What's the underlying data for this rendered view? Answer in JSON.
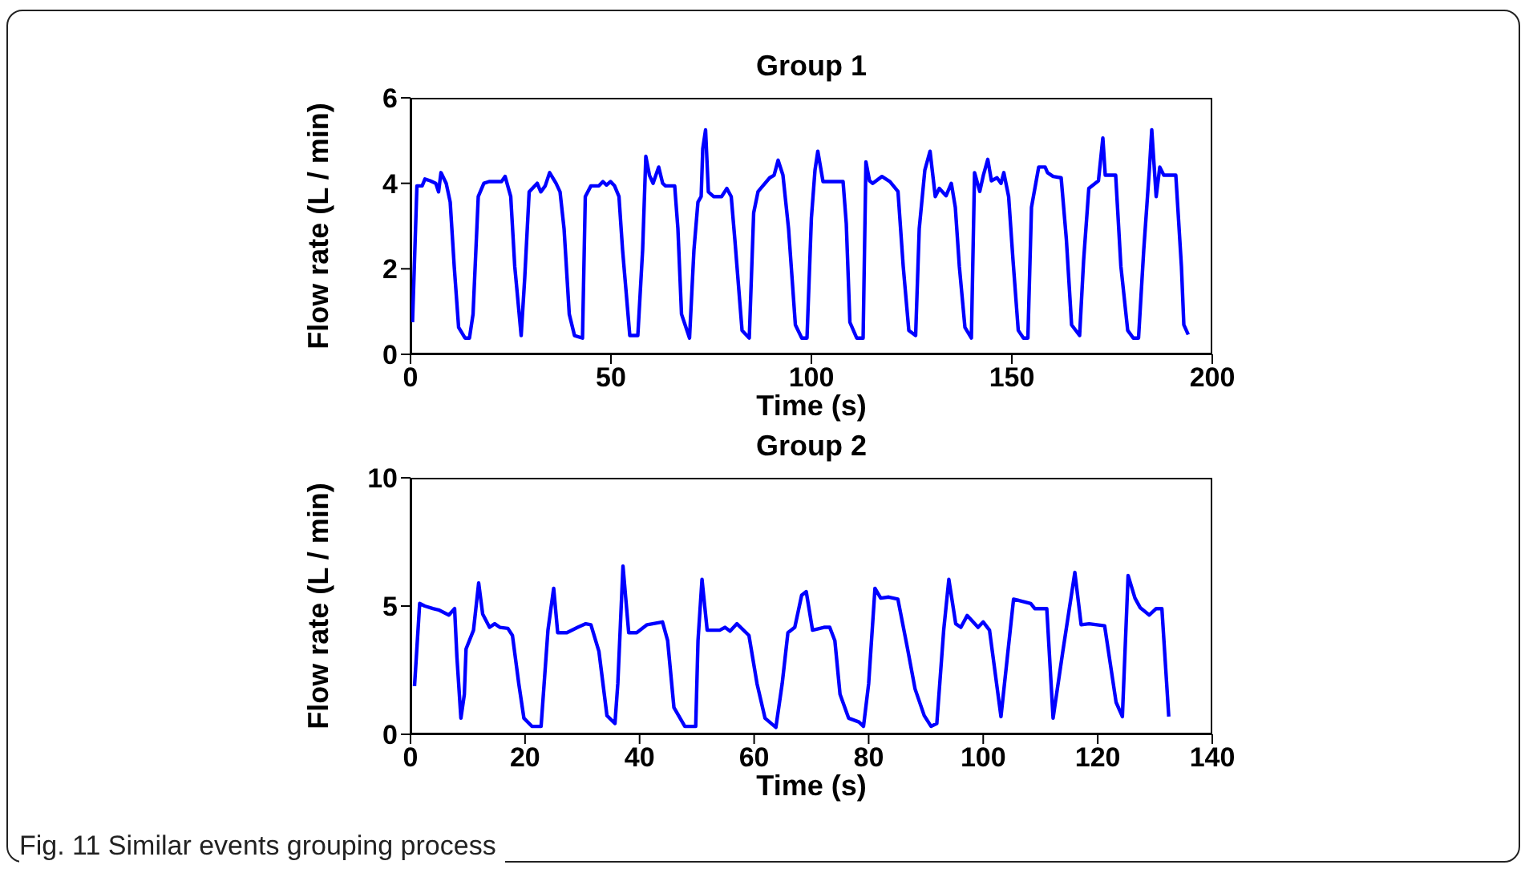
{
  "chart_data": [
    {
      "type": "line",
      "title": "Group 1",
      "xlabel": "Time (s)",
      "ylabel": "Flow rate (L / min)",
      "xlim": [
        0,
        200
      ],
      "xticks": [
        0,
        50,
        100,
        150,
        200
      ],
      "ylim": [
        0,
        6
      ],
      "yticks": [
        0,
        2,
        4,
        6
      ],
      "grid": false,
      "marker": "none",
      "line_style": "solid",
      "x": [
        0.5,
        1.6,
        2.9,
        3.6,
        4.9,
        6.3,
        7,
        7.6,
        8.9,
        9.9,
        10.9,
        12,
        13.6,
        14.7,
        15.6,
        16.9,
        18.3,
        19.6,
        22.7,
        23.6,
        25,
        26,
        27.6,
        28.5,
        29.6,
        31.6,
        32.5,
        33.6,
        34.7,
        36.3,
        37.3,
        38.3,
        39.6,
        40.9,
        42.9,
        43.6,
        45,
        47,
        48,
        48.9,
        49.9,
        50.9,
        52,
        52.9,
        54.7,
        56.7,
        57.9,
        58.7,
        59.6,
        60.5,
        61.9,
        62.9,
        63.6,
        65.9,
        66.7,
        67.6,
        69.6,
        70.7,
        71.7,
        72.5,
        72.9,
        73.6,
        74.3,
        75.6,
        77.6,
        78.9,
        80,
        80.9,
        82.7,
        84.5,
        85.6,
        86.7,
        89.6,
        90.7,
        91.7,
        92.9,
        94.3,
        96,
        97.6,
        98.9,
        100,
        100.9,
        101.6,
        102.9,
        107.9,
        108.7,
        109.6,
        111.3,
        112.9,
        113.6,
        114.5,
        115.3,
        117.6,
        119.6,
        121.6,
        122.9,
        124.3,
        126,
        126.9,
        128.3,
        129.6,
        130.9,
        131.9,
        133.6,
        134.9,
        135.9,
        136.9,
        138.3,
        139.9,
        140.7,
        142,
        142.9,
        144,
        144.9,
        146.3,
        147.3,
        148,
        149.2,
        150.3,
        151.6,
        152.9,
        154,
        154.9,
        156.7,
        158.3,
        158.9,
        160.3,
        162.3,
        163.6,
        164.9,
        166.9,
        167.9,
        169.2,
        171.6,
        172.7,
        173.3,
        175.9,
        177.2,
        178.9,
        180.3,
        181.6,
        182.9,
        184.3,
        184.9,
        186,
        186.9,
        187.9,
        190.9,
        192.3,
        192.9,
        194
      ],
      "series": [
        {
          "color": "#0000ff",
          "values": [
            0.75,
            3.94,
            3.94,
            4.1,
            4.06,
            4,
            3.8,
            4.25,
            4,
            3.56,
            2.06,
            0.63,
            0.38,
            0.38,
            0.94,
            3.69,
            4,
            4.04,
            4.04,
            4.16,
            3.69,
            2.06,
            0.44,
            1.8,
            3.8,
            4,
            3.8,
            3.94,
            4.25,
            4,
            3.8,
            2.94,
            0.94,
            0.44,
            0.38,
            3.69,
            3.94,
            3.94,
            4.04,
            3.96,
            4.04,
            3.94,
            3.69,
            2.44,
            0.44,
            0.44,
            2.44,
            4.63,
            4.19,
            4,
            4.38,
            4,
            3.94,
            3.94,
            2.94,
            0.94,
            0.38,
            2.44,
            3.56,
            3.69,
            4.81,
            5.25,
            3.8,
            3.69,
            3.69,
            3.88,
            3.69,
            2.69,
            0.56,
            0.38,
            3.31,
            3.81,
            4.13,
            4.19,
            4.54,
            4.19,
            2.94,
            0.69,
            0.38,
            0.38,
            3.19,
            4.31,
            4.75,
            4.04,
            4.04,
            3.06,
            0.75,
            0.38,
            0.38,
            4.5,
            4.06,
            4,
            4.16,
            4.04,
            3.81,
            2.06,
            0.56,
            0.44,
            2.94,
            4.31,
            4.75,
            3.69,
            3.88,
            3.71,
            4,
            3.44,
            2.06,
            0.63,
            0.38,
            4.25,
            3.81,
            4.19,
            4.56,
            4.06,
            4.13,
            4,
            4.25,
            3.69,
            2.19,
            0.56,
            0.38,
            0.38,
            3.44,
            4.38,
            4.38,
            4.25,
            4.16,
            4.13,
            2.69,
            0.69,
            0.44,
            2.19,
            3.88,
            4.06,
            5.06,
            4.19,
            4.19,
            2.06,
            0.56,
            0.38,
            0.38,
            2.44,
            4.31,
            5.25,
            3.69,
            4.38,
            4.19,
            4.19,
            2.06,
            0.69,
            0.46
          ]
        }
      ]
    },
    {
      "type": "line",
      "title": "Group 2",
      "xlabel": "Time (s)",
      "ylabel": "Flow rate (L / min)",
      "xlim": [
        0,
        140
      ],
      "xticks": [
        0,
        20,
        40,
        60,
        80,
        100,
        120,
        140
      ],
      "ylim": [
        0,
        10
      ],
      "yticks": [
        0,
        5,
        10
      ],
      "grid": false,
      "marker": "none",
      "line_style": "solid",
      "annotations": [
        "Fig. 11 Similar events grouping process"
      ],
      "x": [
        0.7,
        1.6,
        2.5,
        3.9,
        4.9,
        6.7,
        7.7,
        8.1,
        8.8,
        9.4,
        9.7,
        11,
        11.9,
        12.6,
        13.8,
        14.7,
        15.6,
        17,
        17.8,
        18.9,
        19.8,
        21.2,
        22.8,
        24,
        25,
        25.7,
        27.3,
        29.2,
        30.6,
        31.5,
        32.9,
        34.3,
        35.7,
        36.2,
        37.1,
        38.1,
        39.5,
        41.3,
        44,
        44.9,
        46,
        47.9,
        49.8,
        50.2,
        50.9,
        51.8,
        54,
        54.9,
        55.8,
        57,
        59.1,
        60.5,
        61.9,
        63.8,
        64.9,
        65.9,
        67.1,
        68.3,
        69.1,
        70.2,
        72.2,
        73.2,
        74.1,
        75,
        76.5,
        78.3,
        79.1,
        80,
        81.1,
        82.1,
        83.5,
        85.1,
        86.7,
        88.1,
        89.7,
        90.9,
        91.9,
        93.1,
        94,
        95.2,
        96.1,
        97.2,
        99.1,
        100,
        101.1,
        103.1,
        105.3,
        106.4,
        108.3,
        109,
        111.1,
        112.2,
        113.9,
        116,
        117.1,
        118.5,
        121.2,
        123.2,
        124.3,
        125.3,
        126.5,
        127.4,
        129,
        130.2,
        131.2,
        132.4
      ],
      "series": [
        {
          "color": "#0000ff",
          "values": [
            1.88,
            5.1,
            5,
            4.9,
            4.85,
            4.65,
            4.9,
            3.02,
            0.63,
            1.56,
            3.33,
            4.06,
            5.9,
            4.69,
            4.17,
            4.31,
            4.17,
            4.13,
            3.85,
            1.98,
            0.63,
            0.31,
            0.31,
            4.06,
            5.69,
            3.96,
            3.96,
            4.17,
            4.31,
            4.27,
            3.23,
            0.73,
            0.42,
            1.98,
            6.56,
            3.96,
            3.96,
            4.27,
            4.38,
            3.65,
            1.04,
            0.31,
            0.31,
            3.65,
            6.04,
            4.06,
            4.06,
            4.17,
            4.02,
            4.31,
            3.85,
            1.98,
            0.63,
            0.27,
            1.98,
            3.96,
            4.17,
            5.42,
            5.56,
            4.06,
            4.17,
            4.17,
            3.65,
            1.56,
            0.63,
            0.48,
            0.31,
            1.98,
            5.69,
            5.31,
            5.35,
            5.27,
            3.44,
            1.77,
            0.73,
            0.31,
            0.42,
            4.06,
            6.04,
            4.31,
            4.17,
            4.63,
            4.17,
            4.38,
            4.06,
            0.69,
            5.27,
            5.21,
            5.1,
            4.9,
            4.9,
            0.63,
            3.23,
            6.31,
            4.27,
            4.31,
            4.23,
            1.25,
            0.69,
            6.19,
            5.31,
            4.94,
            4.65,
            4.9,
            4.9,
            0.69
          ]
        }
      ]
    }
  ]
}
